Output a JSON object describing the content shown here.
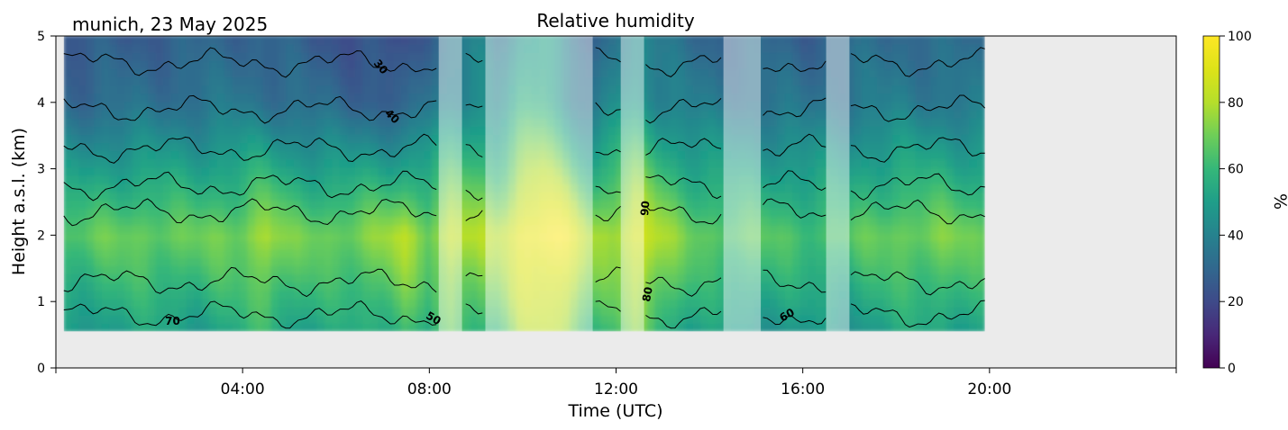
{
  "chart_data": {
    "type": "heatmap",
    "title": "Relative humidity",
    "subtitle": "munich, 23 May 2025",
    "xlabel": "Time (UTC)",
    "ylabel": "Height a.s.l. (km)",
    "xlim": [
      0,
      24
    ],
    "ylim": [
      0,
      5
    ],
    "x_ticks": [
      {
        "value": 4,
        "label": "04:00"
      },
      {
        "value": 8,
        "label": "08:00"
      },
      {
        "value": 12,
        "label": "12:00"
      },
      {
        "value": 16,
        "label": "16:00"
      },
      {
        "value": 20,
        "label": "20:00"
      }
    ],
    "x_minor_ticks": [
      0,
      24
    ],
    "y_ticks": [
      {
        "value": 0,
        "label": "0"
      },
      {
        "value": 1,
        "label": "1"
      },
      {
        "value": 2,
        "label": "2"
      },
      {
        "value": 3,
        "label": "3"
      },
      {
        "value": 4,
        "label": "4"
      },
      {
        "value": 5,
        "label": "5"
      }
    ],
    "data_extent": {
      "x": [
        0.17,
        19.9
      ],
      "y": [
        0.55,
        5
      ]
    },
    "colorbar": {
      "label": "%",
      "range": [
        0,
        100
      ],
      "colormap": "viridis",
      "ticks": [
        {
          "value": 0,
          "label": "0"
        },
        {
          "value": 20,
          "label": "20"
        },
        {
          "value": 40,
          "label": "40"
        },
        {
          "value": 60,
          "label": "60"
        },
        {
          "value": 80,
          "label": "80"
        },
        {
          "value": 100,
          "label": "100"
        }
      ]
    },
    "contour_levels": [
      30,
      40,
      50,
      60,
      70,
      80,
      90
    ],
    "contour_labels": [
      {
        "text": "30",
        "x": 6.9,
        "y": 4.5,
        "rotate": 50
      },
      {
        "text": "40",
        "x": 7.15,
        "y": 3.75,
        "rotate": 45
      },
      {
        "text": "70",
        "x": 2.5,
        "y": 0.65,
        "rotate": 0
      },
      {
        "text": "50",
        "x": 8.05,
        "y": 0.7,
        "rotate": 30
      },
      {
        "text": "90",
        "x": 12.7,
        "y": 2.4,
        "rotate": -85
      },
      {
        "text": "80",
        "x": 12.75,
        "y": 1.1,
        "rotate": -80
      },
      {
        "text": "60",
        "x": 15.7,
        "y": 0.75,
        "rotate": -30
      }
    ],
    "masked_intervals": [
      [
        8.2,
        8.7
      ],
      [
        9.2,
        11.5
      ],
      [
        12.1,
        12.6
      ],
      [
        14.3,
        15.1
      ],
      [
        16.5,
        17.0
      ]
    ],
    "humidity_profile": {
      "x": [
        0.2,
        1.0,
        2.0,
        3.0,
        4.0,
        4.5,
        5.0,
        6.0,
        7.0,
        7.5,
        8.0,
        8.5,
        9.0,
        9.5,
        10.0,
        10.5,
        11.0,
        11.5,
        12.0,
        12.5,
        13.0,
        13.5,
        14.0,
        15.0,
        16.0,
        17.0,
        18.0,
        19.0,
        19.9
      ],
      "rh_at_2km": [
        65,
        68,
        70,
        68,
        72,
        80,
        70,
        70,
        75,
        80,
        72,
        85,
        78,
        80,
        95,
        100,
        95,
        75,
        80,
        90,
        78,
        70,
        68,
        66,
        64,
        65,
        70,
        72,
        68
      ],
      "rh_at_4km": [
        30,
        32,
        33,
        34,
        36,
        34,
        33,
        30,
        28,
        26,
        35,
        42,
        45,
        40,
        55,
        60,
        40,
        30,
        45,
        50,
        40,
        38,
        36,
        35,
        34,
        36,
        38,
        37,
        36
      ]
    },
    "background_color": "#ebebeb"
  }
}
